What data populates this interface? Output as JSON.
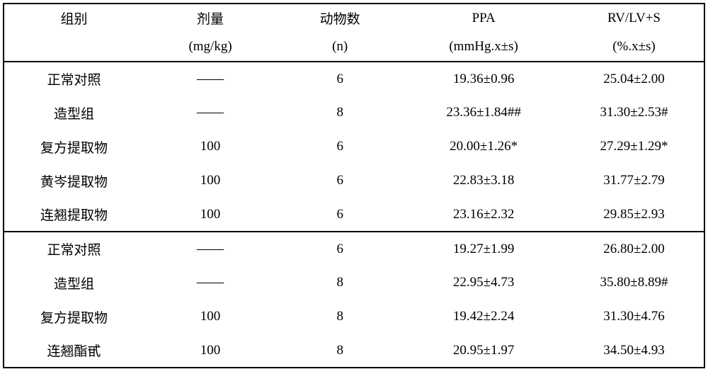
{
  "header": {
    "col1_line1": "组别",
    "col1_line2": "",
    "col2_line1": "剂量",
    "col2_line2": "(mg/kg)",
    "col3_line1": "动物数",
    "col3_line2": "(n)",
    "col4_line1": "PPA",
    "col4_line2": "(mmHg.x±s)",
    "col5_line1": "RV/LV+S",
    "col5_line2": "(%.x±s)"
  },
  "block1": {
    "rows": [
      {
        "group": "正常对照",
        "dose": "——",
        "n": "6",
        "ppa": "19.36±0.96",
        "rvlvs": "25.04±2.00"
      },
      {
        "group": "造型组",
        "dose": "——",
        "n": "8",
        "ppa": "23.36±1.84##",
        "rvlvs": "31.30±2.53#"
      },
      {
        "group": "复方提取物",
        "dose": "100",
        "n": "6",
        "ppa": "20.00±1.26*",
        "rvlvs": "27.29±1.29*"
      },
      {
        "group": "黄岑提取物",
        "dose": "100",
        "n": "6",
        "ppa": "22.83±3.18",
        "rvlvs": "31.77±2.79"
      },
      {
        "group": "连翘提取物",
        "dose": "100",
        "n": "6",
        "ppa": "23.16±2.32",
        "rvlvs": "29.85±2.93"
      }
    ]
  },
  "block2": {
    "rows": [
      {
        "group": "正常对照",
        "dose": "——",
        "n": "6",
        "ppa": "19.27±1.99",
        "rvlvs": "26.80±2.00"
      },
      {
        "group": "造型组",
        "dose": "——",
        "n": "8",
        "ppa": "22.95±4.73",
        "rvlvs": "35.80±8.89#"
      },
      {
        "group": "复方提取物",
        "dose": "100",
        "n": "8",
        "ppa": "19.42±2.24",
        "rvlvs": "31.30±4.76"
      },
      {
        "group": "连翘酯甙",
        "dose": "100",
        "n": "8",
        "ppa": "20.95±1.97",
        "rvlvs": "34.50±4.93"
      }
    ]
  },
  "styling": {
    "font_size": 19,
    "font_family": "SimSun",
    "text_color": "#000000",
    "background_color": "#ffffff",
    "border_color": "#000000",
    "border_width": 2,
    "header_row_height": 40,
    "subheader_row_height": 42,
    "data_row_height": 48,
    "col_widths_pct": [
      20,
      19,
      18,
      23,
      20
    ]
  }
}
